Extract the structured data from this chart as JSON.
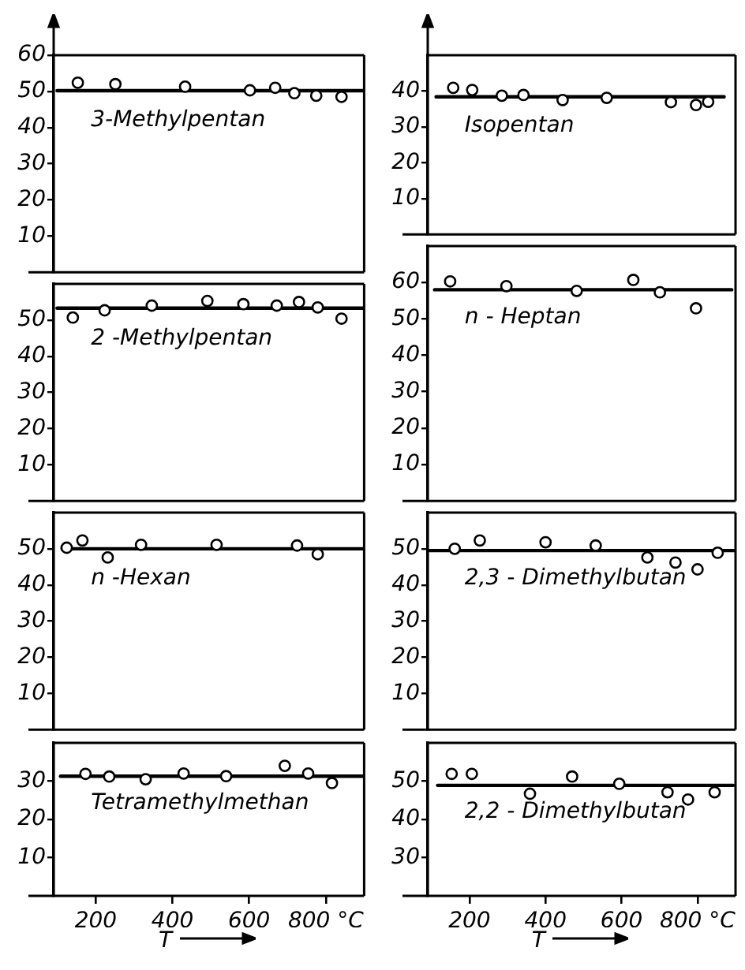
{
  "chart_data": [
    {
      "type": "scatter",
      "title": "3-Methylpentan",
      "xlim": [
        90,
        900
      ],
      "ylim": [
        0,
        60
      ],
      "yticks": [
        10,
        20,
        30,
        40,
        50,
        60
      ],
      "tick_labels": "y",
      "grid": false,
      "legend": false,
      "marker": "circle",
      "series": [
        {
          "color": "#000000",
          "x": [
            153,
            251,
            433,
            602,
            668,
            718,
            775,
            841
          ],
          "values": [
            52.4,
            52,
            51.3,
            50.3,
            51,
            49.5,
            48.8,
            48.5
          ]
        },
        {
          "type": "line",
          "color": "#000000",
          "marker": "none",
          "x": [
            99,
            900
          ],
          "values": [
            50.2,
            50.2
          ]
        }
      ]
    },
    {
      "type": "scatter",
      "title": "2 -Methylpentan",
      "xlim": [
        90,
        900
      ],
      "ylim": [
        0,
        60
      ],
      "yticks": [
        10,
        20,
        30,
        40,
        50
      ],
      "tick_labels": "y",
      "grid": false,
      "legend": false,
      "marker": "circle",
      "series": [
        {
          "color": "#000000",
          "x": [
            140,
            223,
            346,
            491,
            585,
            672,
            730,
            779,
            841
          ],
          "values": [
            50.7,
            52.7,
            54,
            55.3,
            54.4,
            54,
            55,
            53.5,
            50.4
          ]
        },
        {
          "type": "line",
          "color": "#000000",
          "marker": "none",
          "x": [
            99,
            900
          ],
          "values": [
            53.3,
            53.3
          ]
        }
      ]
    },
    {
      "type": "scatter",
      "title": "n -Hexan",
      "xlim": [
        90,
        900
      ],
      "ylim": [
        0,
        60
      ],
      "yticks": [
        10,
        20,
        30,
        40,
        50
      ],
      "tick_labels": "y",
      "grid": false,
      "legend": false,
      "marker": "circle",
      "series": [
        {
          "color": "#000000",
          "x": [
            124,
            165,
            231,
            318,
            515,
            725,
            779
          ],
          "values": [
            50.3,
            52.3,
            47.6,
            51.1,
            51.1,
            50.9,
            48.5
          ]
        },
        {
          "type": "line",
          "color": "#000000",
          "marker": "none",
          "x": [
            112,
            900
          ],
          "values": [
            50,
            50
          ]
        }
      ]
    },
    {
      "type": "scatter",
      "title": "Tetramethylmethan",
      "xlabel": "T",
      "xlim": [
        90,
        900
      ],
      "ylim": [
        0,
        40
      ],
      "xticks": [
        200,
        400,
        600,
        {
          "value": 800,
          "label": "800 °C"
        }
      ],
      "yticks": [
        10,
        20,
        30
      ],
      "grid": false,
      "legend": false,
      "marker": "circle",
      "series": [
        {
          "color": "#000000",
          "x": [
            173,
            235,
            330,
            429,
            540,
            693,
            754,
            816
          ],
          "values": [
            31.9,
            31.2,
            30.5,
            32,
            31.3,
            34,
            32,
            29.5
          ]
        },
        {
          "type": "line",
          "color": "#000000",
          "marker": "none",
          "x": [
            108,
            900
          ],
          "values": [
            31.3,
            31.3
          ]
        }
      ]
    },
    {
      "type": "scatter",
      "title": "Isopentan",
      "xlim": [
        90,
        900
      ],
      "ylim": [
        0,
        50
      ],
      "yticks": [
        10,
        20,
        30,
        40
      ],
      "tick_labels": "y",
      "grid": false,
      "legend": false,
      "marker": "circle",
      "series": [
        {
          "color": "#000000",
          "x": [
            157,
            207,
            285,
            342,
            445,
            561,
            730,
            796,
            828
          ],
          "values": [
            40.9,
            40.3,
            38.7,
            38.9,
            37.5,
            38.1,
            36.9,
            36.1,
            37
          ]
        },
        {
          "type": "line",
          "color": "#000000",
          "marker": "none",
          "x": [
            112,
            870
          ],
          "values": [
            38.4,
            38.4
          ]
        }
      ]
    },
    {
      "type": "scatter",
      "title": "n - Heptan",
      "xlim": [
        90,
        900
      ],
      "ylim": [
        0,
        70
      ],
      "yticks": [
        10,
        20,
        30,
        40,
        50,
        60
      ],
      "tick_labels": "y",
      "grid": false,
      "legend": false,
      "marker": "circle",
      "series": [
        {
          "color": "#000000",
          "x": [
            149,
            297,
            482,
            631,
            701,
            796
          ],
          "values": [
            60.3,
            59,
            57.7,
            60.7,
            57.3,
            52.9
          ]
        },
        {
          "type": "line",
          "color": "#000000",
          "marker": "none",
          "x": [
            108,
            890
          ],
          "values": [
            58,
            58
          ]
        }
      ]
    },
    {
      "type": "scatter",
      "title": "2,3 - Dimethylbutan",
      "xlim": [
        90,
        900
      ],
      "ylim": [
        0,
        60
      ],
      "yticks": [
        10,
        20,
        30,
        40,
        50
      ],
      "tick_labels": "y",
      "grid": false,
      "legend": false,
      "marker": "circle",
      "series": [
        {
          "color": "#000000",
          "x": [
            161,
            227,
            400,
            532,
            668,
            742,
            800,
            853
          ],
          "values": [
            50,
            52.3,
            51.8,
            50.9,
            47.6,
            46.2,
            44.3,
            48.9
          ]
        },
        {
          "type": "line",
          "color": "#000000",
          "marker": "none",
          "x": [
            95,
            900
          ],
          "values": [
            49.5,
            49.5
          ]
        }
      ]
    },
    {
      "type": "scatter",
      "title": "2,2 - Dimethylbutan",
      "xlabel": "T",
      "xlim": [
        90,
        900
      ],
      "ylim": [
        20,
        60
      ],
      "xticks": [
        200,
        400,
        600,
        {
          "value": 800,
          "label": "800 °C"
        }
      ],
      "yticks": [
        30,
        40,
        50
      ],
      "grid": false,
      "legend": false,
      "marker": "circle",
      "series": [
        {
          "color": "#000000",
          "x": [
            153,
            206,
            359,
            470,
            594,
            721,
            775,
            845
          ],
          "values": [
            51.9,
            51.9,
            46.7,
            51.2,
            49.3,
            47.1,
            45.2,
            47.1
          ]
        },
        {
          "type": "line",
          "color": "#000000",
          "marker": "none",
          "x": [
            116,
            894
          ],
          "values": [
            48.9,
            48.9
          ]
        }
      ]
    }
  ]
}
